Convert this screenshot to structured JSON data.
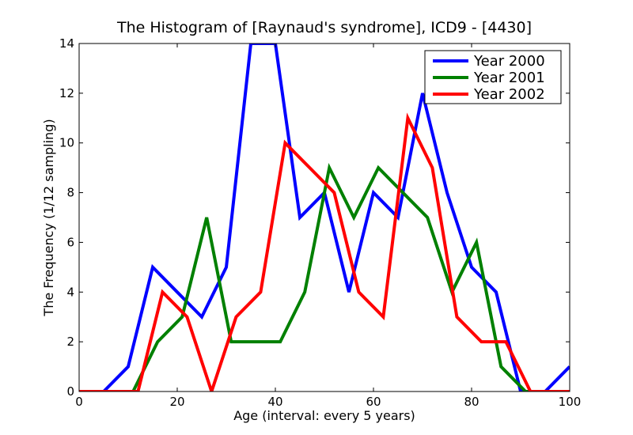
{
  "chart_data": {
    "type": "line",
    "title": "The Histogram of [Raynaud's syndrome], ICD9 - [4430]",
    "xlabel": "Age (interval: every 5 years)",
    "ylabel": "The Frequency (1/12 sampling)",
    "xlim": [
      0,
      100
    ],
    "ylim": [
      0,
      14
    ],
    "xticks": [
      0,
      20,
      40,
      60,
      80,
      100
    ],
    "yticks": [
      0,
      2,
      4,
      6,
      8,
      10,
      12,
      14
    ],
    "grid": false,
    "legend_position": "top-right",
    "series": [
      {
        "name": "Year 2000",
        "color": "#0000ff",
        "x": [
          0,
          5,
          10,
          15,
          20,
          25,
          30,
          35,
          40,
          45,
          50,
          55,
          60,
          65,
          70,
          75,
          80,
          85,
          90,
          95,
          100
        ],
        "y": [
          0,
          0,
          1,
          5,
          4,
          3,
          5,
          14,
          14,
          7,
          8,
          4,
          8,
          7,
          12,
          8,
          5,
          4,
          0,
          0,
          1
        ]
      },
      {
        "name": "Year 2001",
        "color": "#008000",
        "x": [
          0,
          6,
          11,
          16,
          21,
          26,
          31,
          36,
          41,
          46,
          51,
          56,
          61,
          66,
          71,
          76,
          81,
          86,
          91,
          96,
          100
        ],
        "y": [
          0,
          0,
          0,
          2,
          3,
          7,
          2,
          2,
          2,
          4,
          9,
          7,
          9,
          8,
          7,
          4,
          6,
          1,
          0,
          0,
          0
        ]
      },
      {
        "name": "Year 2002",
        "color": "#ff0000",
        "x": [
          0,
          2,
          7,
          12,
          17,
          22,
          27,
          32,
          37,
          42,
          47,
          52,
          57,
          62,
          67,
          72,
          77,
          82,
          87,
          92,
          97,
          100
        ],
        "y": [
          0,
          0,
          0,
          0,
          4,
          3,
          0,
          3,
          4,
          10,
          9,
          8,
          4,
          3,
          11,
          9,
          3,
          2,
          2,
          0,
          0,
          0
        ]
      }
    ]
  }
}
